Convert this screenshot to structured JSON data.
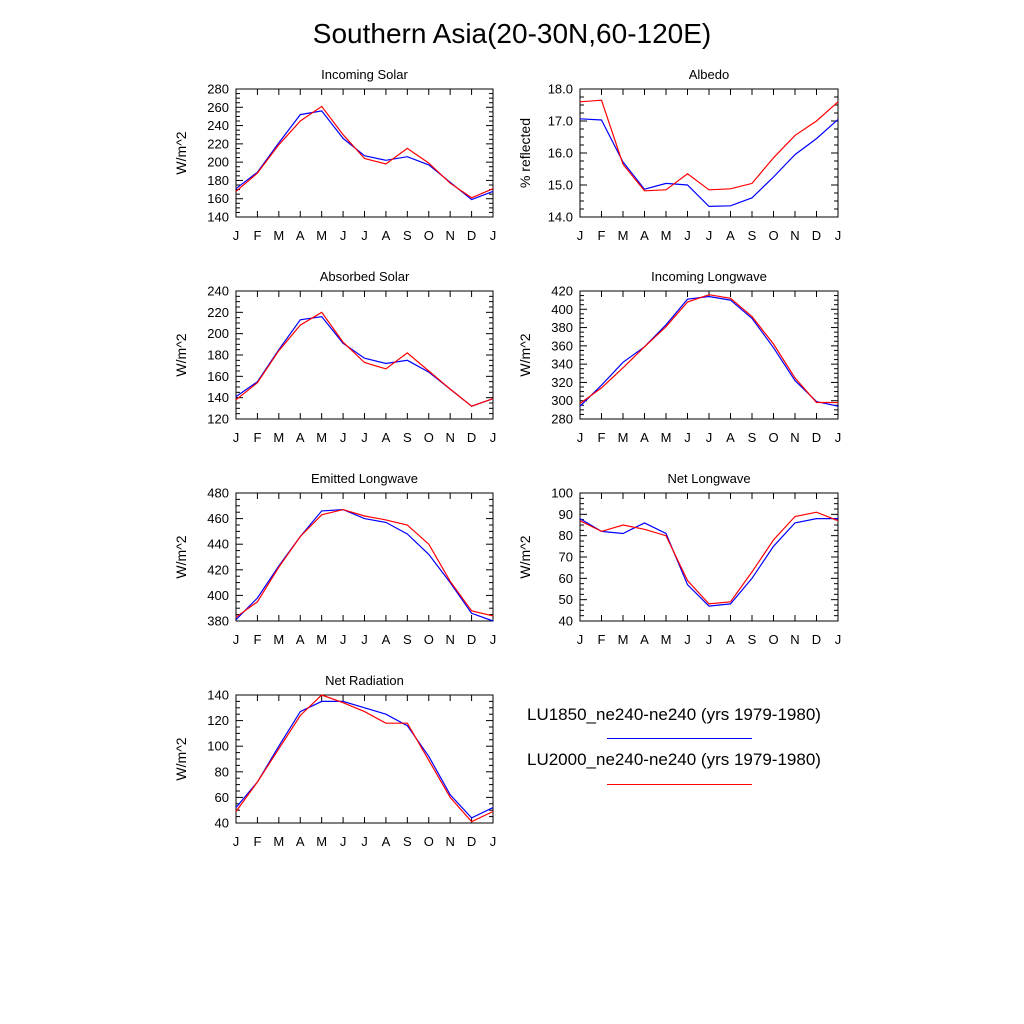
{
  "title": "Southern Asia(20-30N,60-120E)",
  "months": [
    "J",
    "F",
    "M",
    "A",
    "M",
    "J",
    "J",
    "A",
    "S",
    "O",
    "N",
    "D",
    "J"
  ],
  "legend": [
    {
      "name": "LU1850_ne240-ne240 (yrs 1979-1980)",
      "color": "#0000ff"
    },
    {
      "name": "LU2000_ne240-ne240 (yrs 1979-1980)",
      "color": "#ff0000"
    }
  ],
  "chart_data": [
    {
      "type": "line",
      "title": "Incoming Solar",
      "ylabel": "W/m^2",
      "ylim": [
        140,
        280
      ],
      "yticks": [
        140,
        160,
        180,
        200,
        220,
        240,
        260,
        280
      ],
      "series": [
        {
          "name": "LU1850_ne240-ne240 (yrs 1979-1980)",
          "color": "#0000ff",
          "values": [
            171,
            189,
            221,
            252,
            256,
            226,
            207,
            202,
            206,
            197,
            178,
            159,
            168
          ]
        },
        {
          "name": "LU2000_ne240-ne240 (yrs 1979-1980)",
          "color": "#ff0000",
          "values": [
            168,
            188,
            219,
            245,
            261,
            230,
            204,
            198,
            215,
            199,
            177,
            161,
            171
          ]
        }
      ]
    },
    {
      "type": "line",
      "title": "Albedo",
      "ylabel": "% reflected",
      "ylim": [
        14.0,
        18.0
      ],
      "yticks": [
        14.0,
        15.0,
        16.0,
        17.0,
        18.0
      ],
      "tick_decimals": 1,
      "series": [
        {
          "name": "LU1850_ne240-ne240 (yrs 1979-1980)",
          "color": "#0000ff",
          "values": [
            17.07,
            17.03,
            15.72,
            14.87,
            15.05,
            15.0,
            14.33,
            14.35,
            14.6,
            15.25,
            15.95,
            16.45,
            17.05
          ]
        },
        {
          "name": "LU2000_ne240-ne240 (yrs 1979-1980)",
          "color": "#ff0000",
          "values": [
            17.6,
            17.65,
            15.65,
            14.82,
            14.85,
            15.35,
            14.85,
            14.88,
            15.05,
            15.85,
            16.55,
            17.0,
            17.6
          ]
        }
      ]
    },
    {
      "type": "line",
      "title": "Absorbed Solar",
      "ylabel": "W/m^2",
      "ylim": [
        120,
        240
      ],
      "yticks": [
        120,
        140,
        160,
        180,
        200,
        220,
        240
      ],
      "series": [
        {
          "name": "LU1850_ne240-ne240 (yrs 1979-1980)",
          "color": "#0000ff",
          "values": [
            141,
            155,
            185,
            213,
            216,
            191,
            177,
            172,
            175,
            164,
            148,
            132,
            139
          ]
        },
        {
          "name": "LU2000_ne240-ne240 (yrs 1979-1980)",
          "color": "#ff0000",
          "values": [
            138,
            154,
            184,
            208,
            220,
            192,
            173,
            167,
            182,
            165,
            148,
            132,
            139
          ]
        }
      ]
    },
    {
      "type": "line",
      "title": "Incoming Longwave",
      "ylabel": "W/m^2",
      "ylim": [
        280,
        420
      ],
      "yticks": [
        280,
        300,
        320,
        340,
        360,
        380,
        400,
        420
      ],
      "series": [
        {
          "name": "LU1850_ne240-ne240 (yrs 1979-1980)",
          "color": "#0000ff",
          "values": [
            294,
            317,
            342,
            359,
            383,
            411,
            414,
            410,
            390,
            358,
            322,
            299,
            294
          ]
        },
        {
          "name": "LU2000_ne240-ne240 (yrs 1979-1980)",
          "color": "#ff0000",
          "values": [
            297,
            314,
            336,
            359,
            381,
            408,
            416,
            412,
            392,
            362,
            325,
            298,
            298
          ]
        }
      ]
    },
    {
      "type": "line",
      "title": "Emitted Longwave",
      "ylabel": "W/m^2",
      "ylim": [
        380,
        480
      ],
      "yticks": [
        380,
        400,
        420,
        440,
        460,
        480
      ],
      "series": [
        {
          "name": "LU1850_ne240-ne240 (yrs 1979-1980)",
          "color": "#0000ff",
          "values": [
            381,
            398,
            423,
            446,
            466,
            467,
            460,
            457,
            448,
            432,
            410,
            386,
            380
          ]
        },
        {
          "name": "LU2000_ne240-ne240 (yrs 1979-1980)",
          "color": "#ff0000",
          "values": [
            383,
            395,
            422,
            446,
            463,
            467,
            462,
            459,
            455,
            440,
            411,
            388,
            384
          ]
        }
      ]
    },
    {
      "type": "line",
      "title": "Net Longwave",
      "ylabel": "W/m^2",
      "ylim": [
        40,
        100
      ],
      "yticks": [
        40,
        50,
        60,
        70,
        80,
        90,
        100
      ],
      "series": [
        {
          "name": "LU1850_ne240-ne240 (yrs 1979-1980)",
          "color": "#0000ff",
          "values": [
            88,
            82,
            81,
            86,
            81,
            57,
            47,
            48,
            60,
            75,
            86,
            88,
            88
          ]
        },
        {
          "name": "LU2000_ne240-ne240 (yrs 1979-1980)",
          "color": "#ff0000",
          "values": [
            87,
            82,
            85,
            83,
            80,
            59,
            48,
            49,
            63,
            78,
            89,
            91,
            87
          ]
        }
      ]
    },
    {
      "type": "line",
      "title": "Net Radiation",
      "ylabel": "W/m^2",
      "ylim": [
        40,
        140
      ],
      "yticks": [
        40,
        60,
        80,
        100,
        120,
        140
      ],
      "series": [
        {
          "name": "LU1850_ne240-ne240 (yrs 1979-1980)",
          "color": "#0000ff",
          "values": [
            52,
            72,
            100,
            127,
            135,
            135,
            130,
            125,
            116,
            92,
            62,
            44,
            52
          ]
        },
        {
          "name": "LU2000_ne240-ne240 (yrs 1979-1980)",
          "color": "#ff0000",
          "values": [
            49,
            72,
            98,
            124,
            140,
            134,
            127,
            118,
            118,
            89,
            60,
            41,
            49
          ]
        }
      ]
    }
  ]
}
